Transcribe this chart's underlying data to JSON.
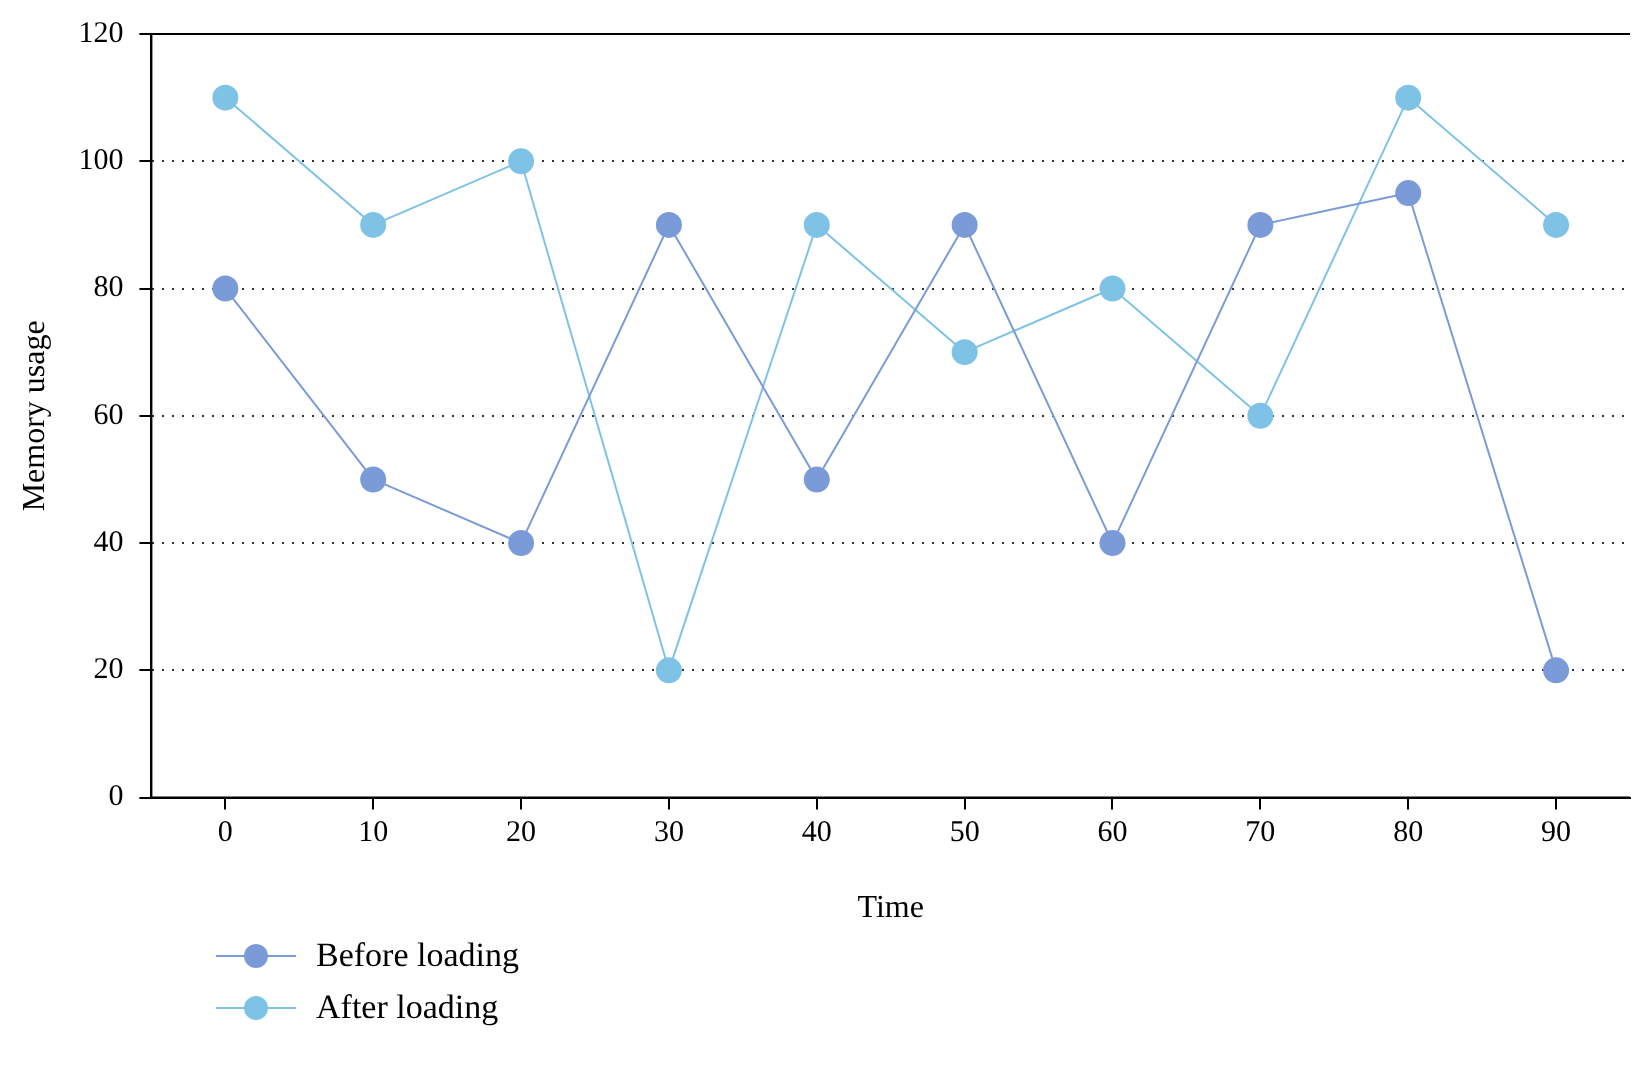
{
  "chart_data": {
    "type": "line",
    "xlabel": "Time",
    "ylabel": "Memory usage",
    "x": [
      0,
      10,
      20,
      30,
      40,
      50,
      60,
      70,
      80,
      90
    ],
    "series": [
      {
        "name": "Before loading",
        "color": "#7b9bd8",
        "values": [
          80,
          50,
          40,
          90,
          50,
          90,
          40,
          90,
          95,
          20
        ]
      },
      {
        "name": "After loading",
        "color": "#7ec3e6",
        "values": [
          110,
          90,
          100,
          20,
          90,
          70,
          80,
          60,
          110,
          90
        ]
      }
    ],
    "xlim": [
      -5,
      95
    ],
    "xticks": [
      0,
      10,
      20,
      30,
      40,
      50,
      60,
      70,
      80,
      90
    ],
    "ylim": [
      0,
      120
    ],
    "yticks": [
      0,
      20,
      40,
      60,
      80,
      100,
      120
    ],
    "grid": "y",
    "legend": "bottom left",
    "marker": "circle",
    "line_style": "solid"
  }
}
